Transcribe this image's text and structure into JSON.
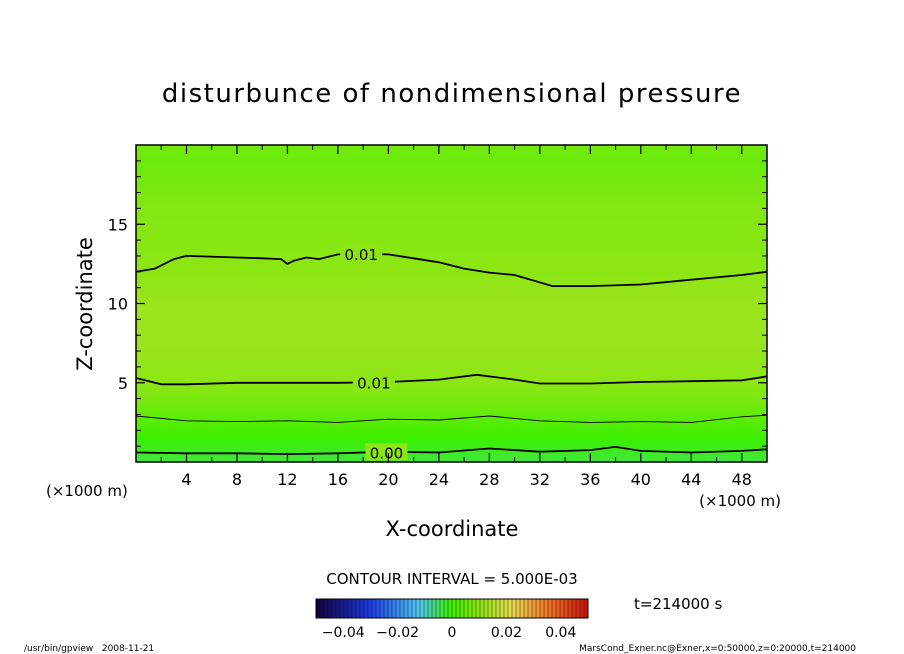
{
  "chart_data": {
    "type": "heatmap",
    "title": "disturbunce of nondimensional pressure",
    "xlabel": "X-coordinate",
    "ylabel": "Z-coordinate",
    "x_unit": "(×1000 m)",
    "y_unit": "(×1000 m)",
    "xlim": [
      0,
      50
    ],
    "ylim": [
      0,
      20
    ],
    "x_ticks": [
      4,
      8,
      12,
      16,
      20,
      24,
      28,
      32,
      36,
      40,
      44,
      48
    ],
    "y_ticks": [
      5,
      10,
      15
    ],
    "contour_interval_label": "CONTOUR INTERVAL = 5.000E-03",
    "time_label": "t=214000 s",
    "colorbar": {
      "ticks": [
        "-0.04",
        "-0.02",
        "0",
        "0.02",
        "0.04"
      ],
      "range": [
        -0.05,
        0.05
      ]
    },
    "contours": [
      {
        "level": "0.00",
        "label_x": 18.5,
        "points": [
          [
            0,
            0.6
          ],
          [
            4,
            0.55
          ],
          [
            8,
            0.55
          ],
          [
            12,
            0.5
          ],
          [
            16,
            0.55
          ],
          [
            20,
            0.65
          ],
          [
            24,
            0.6
          ],
          [
            28,
            0.85
          ],
          [
            32,
            0.65
          ],
          [
            36,
            0.75
          ],
          [
            38,
            0.95
          ],
          [
            40,
            0.7
          ],
          [
            44,
            0.6
          ],
          [
            48,
            0.7
          ],
          [
            50,
            0.8
          ]
        ]
      },
      {
        "level": "0.005",
        "label_x": null,
        "points": [
          [
            0,
            2.9
          ],
          [
            4,
            2.6
          ],
          [
            8,
            2.55
          ],
          [
            12,
            2.6
          ],
          [
            16,
            2.5
          ],
          [
            20,
            2.7
          ],
          [
            24,
            2.65
          ],
          [
            28,
            2.9
          ],
          [
            32,
            2.6
          ],
          [
            36,
            2.5
          ],
          [
            40,
            2.55
          ],
          [
            44,
            2.5
          ],
          [
            48,
            2.85
          ],
          [
            50,
            2.95
          ]
        ]
      },
      {
        "level": "0.01",
        "label_x": 17.5,
        "points": [
          [
            0,
            5.3
          ],
          [
            2,
            4.9
          ],
          [
            4,
            4.9
          ],
          [
            8,
            5.0
          ],
          [
            12,
            5.0
          ],
          [
            16,
            5.0
          ],
          [
            20,
            5.05
          ],
          [
            24,
            5.2
          ],
          [
            27,
            5.5
          ],
          [
            30,
            5.2
          ],
          [
            32,
            4.95
          ],
          [
            36,
            4.95
          ],
          [
            40,
            5.05
          ],
          [
            44,
            5.1
          ],
          [
            48,
            5.15
          ],
          [
            50,
            5.4
          ]
        ]
      },
      {
        "level": "0.01",
        "label_x": 16.5,
        "points": [
          [
            0,
            12.0
          ],
          [
            1.5,
            12.2
          ],
          [
            3,
            12.8
          ],
          [
            4,
            13.0
          ],
          [
            8,
            12.9
          ],
          [
            10,
            12.85
          ],
          [
            11.5,
            12.8
          ],
          [
            12,
            12.5
          ],
          [
            12.5,
            12.7
          ],
          [
            13.5,
            12.9
          ],
          [
            14.5,
            12.8
          ],
          [
            16,
            13.1
          ],
          [
            18,
            13.15
          ],
          [
            20,
            13.1
          ],
          [
            22,
            12.85
          ],
          [
            24,
            12.6
          ],
          [
            26,
            12.2
          ],
          [
            28,
            11.95
          ],
          [
            30,
            11.8
          ],
          [
            33,
            11.1
          ],
          [
            36,
            11.1
          ],
          [
            40,
            11.2
          ],
          [
            44,
            11.5
          ],
          [
            48,
            11.8
          ],
          [
            50,
            12.0
          ]
        ]
      }
    ],
    "field_levels": [
      {
        "z": 0.0,
        "value": -0.003
      },
      {
        "z": 1.5,
        "value": 0.0
      },
      {
        "z": 2.7,
        "value": 0.004
      },
      {
        "z": 4.0,
        "value": 0.008
      },
      {
        "z": 5.0,
        "value": 0.01
      },
      {
        "z": 7.5,
        "value": 0.012
      },
      {
        "z": 10.0,
        "value": 0.012
      },
      {
        "z": 12.0,
        "value": 0.01
      },
      {
        "z": 16.0,
        "value": 0.009
      },
      {
        "z": 19.0,
        "value": 0.006
      },
      {
        "z": 20.0,
        "value": 0.007
      }
    ],
    "grid": false,
    "colormap": "rainbow (blue-green-red)"
  },
  "footer": {
    "left": "/usr/bin/gpview   2008-11-21",
    "right": "MarsCond_Exner.nc@Exner,x=0:50000,z=0:20000,t=214000"
  }
}
